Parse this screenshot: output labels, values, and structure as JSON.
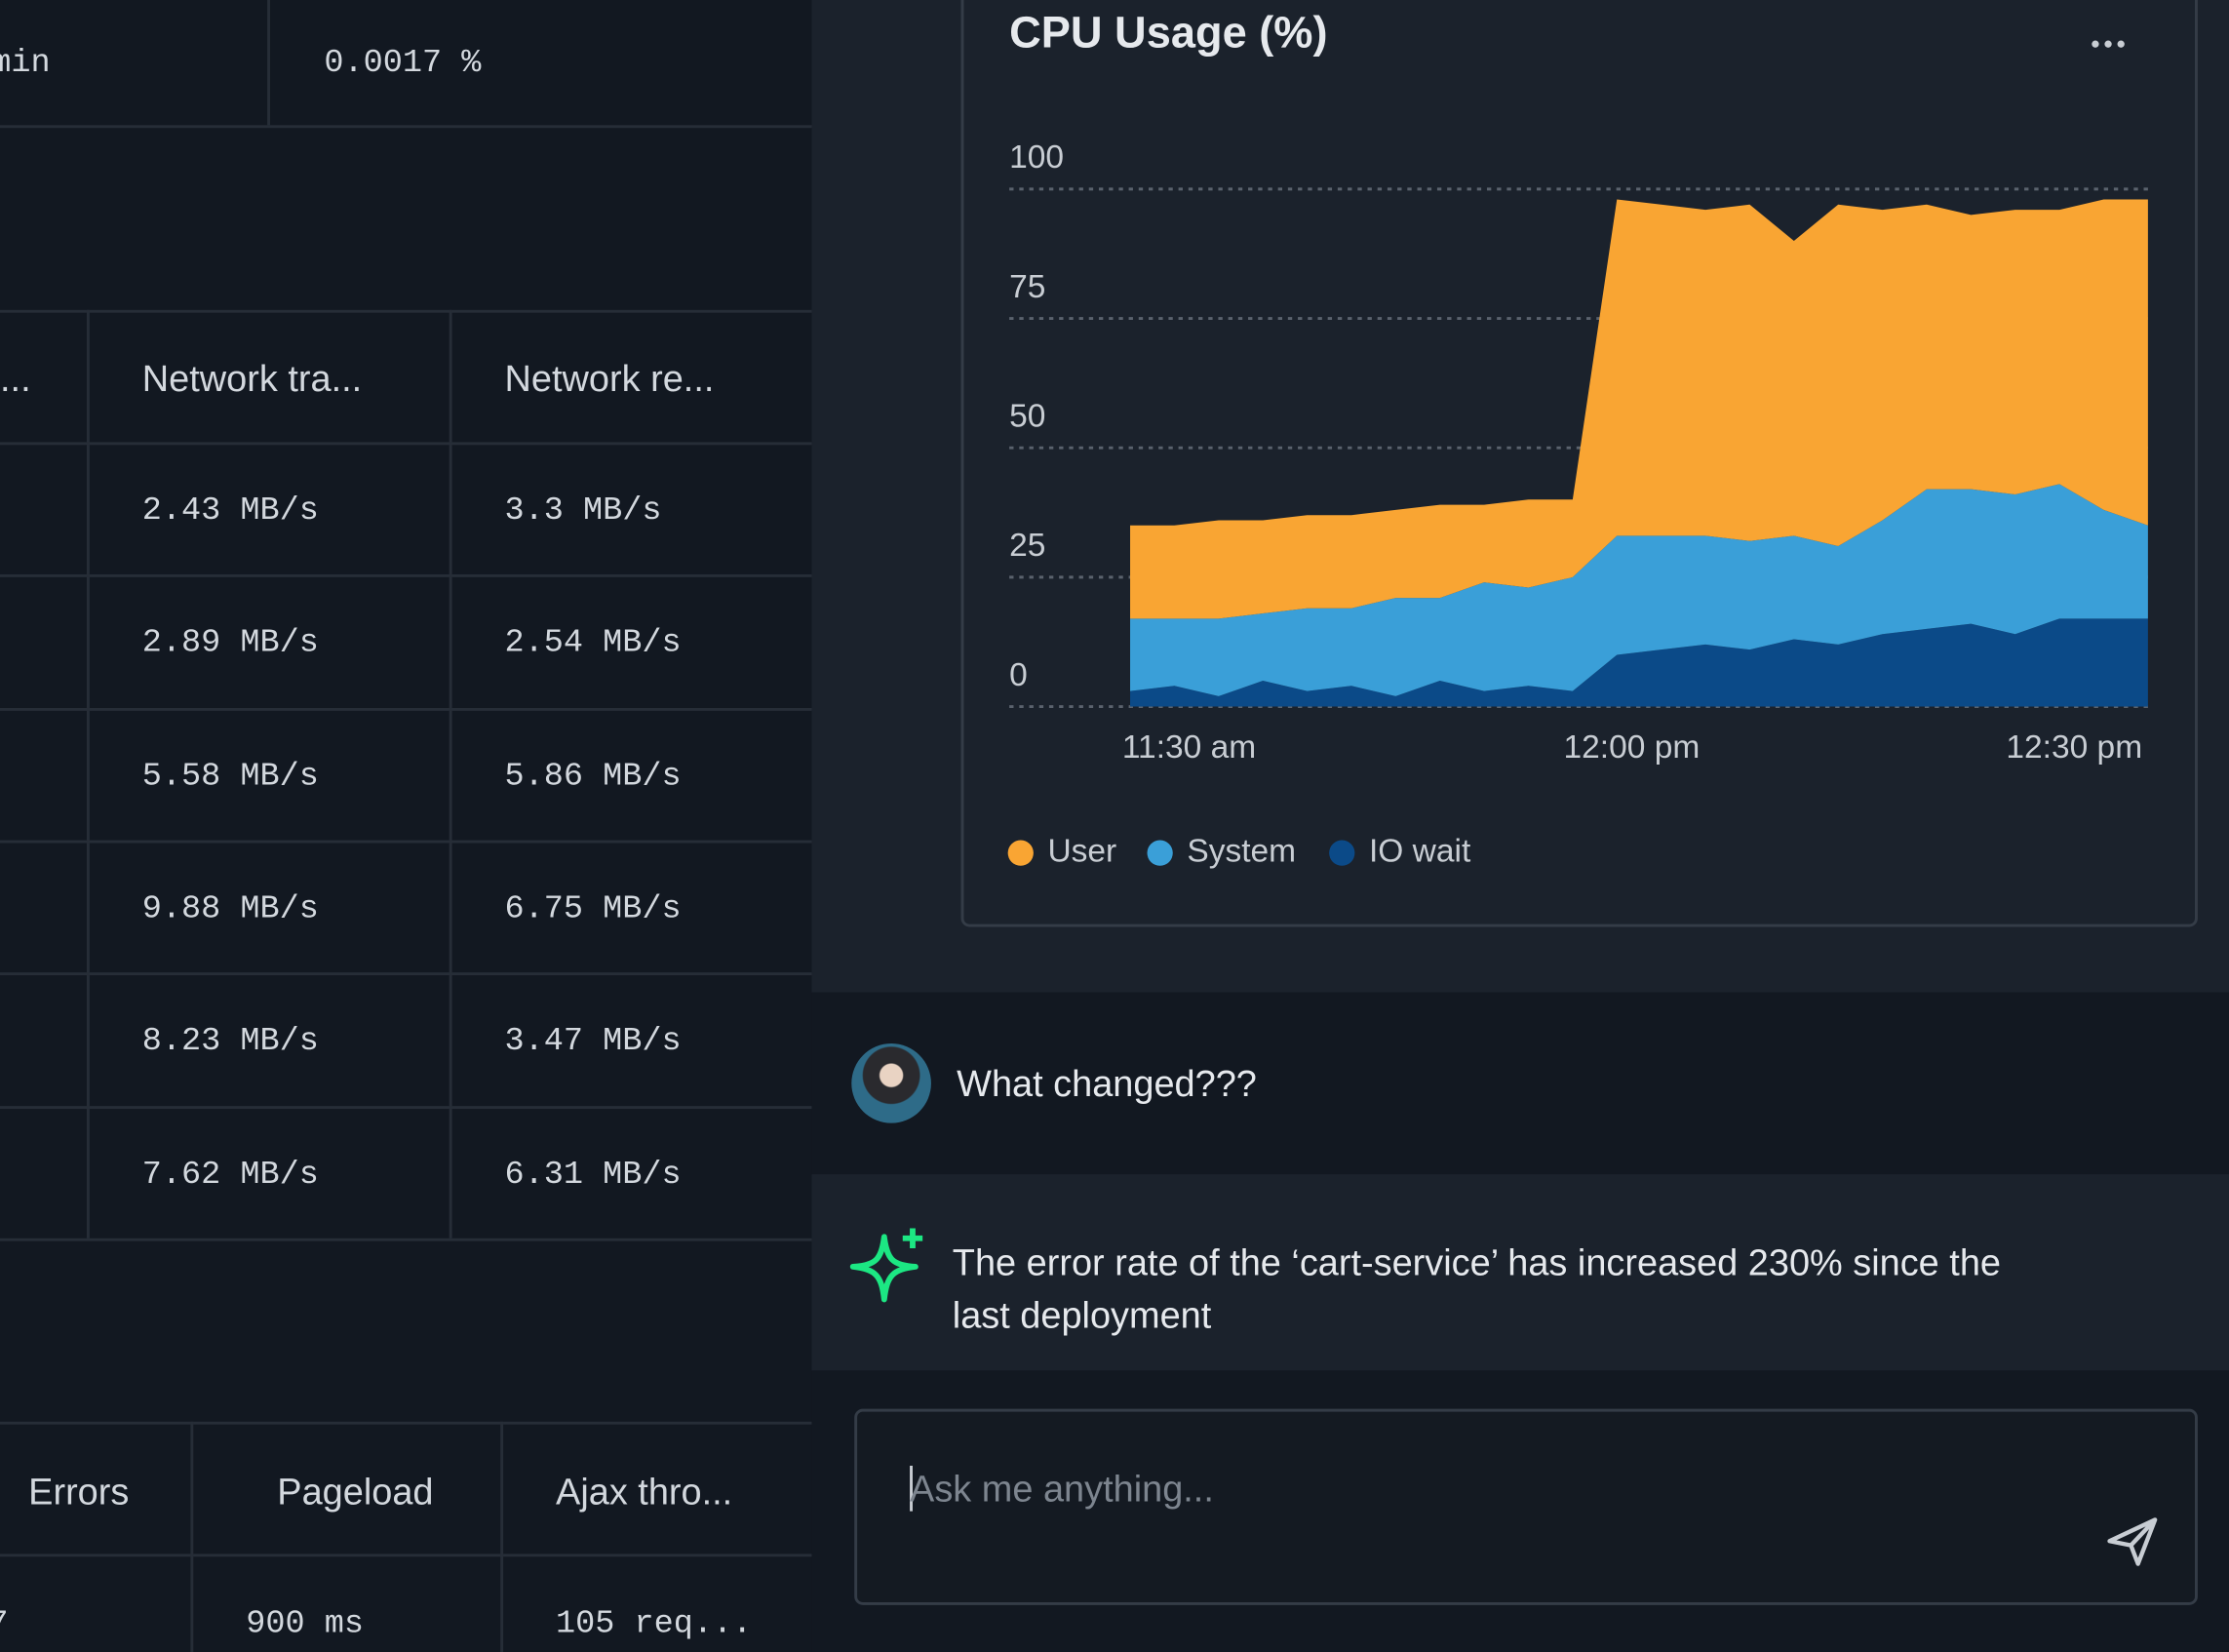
{
  "top_table": {
    "cells": [
      "min",
      "0.0017 %"
    ]
  },
  "network_table": {
    "headers": [
      "...",
      "Network tra...",
      "Network re..."
    ],
    "rows": [
      [
        "2.43 MB/s",
        "3.3 MB/s"
      ],
      [
        "2.89 MB/s",
        "2.54 MB/s"
      ],
      [
        "5.58 MB/s",
        "5.86 MB/s"
      ],
      [
        "9.88 MB/s",
        "6.75 MB/s"
      ],
      [
        "8.23 MB/s",
        "3.47 MB/s"
      ],
      [
        "7.62 MB/s",
        "6.31 MB/s"
      ]
    ]
  },
  "bottom_table": {
    "headers": [
      "Errors",
      "Pageload",
      "Ajax thro..."
    ],
    "rows": [
      [
        "7",
        "900 ms",
        "105 req..."
      ]
    ]
  },
  "chart_data": {
    "type": "stacked-area",
    "title": "CPU Usage (%)",
    "x": [
      686,
      689,
      692,
      695,
      698,
      701,
      704,
      707,
      710,
      713,
      716,
      719,
      722,
      725,
      728,
      731,
      734,
      737,
      740,
      743,
      746,
      749,
      752,
      755
    ],
    "xlim": [
      686,
      755
    ],
    "xticks": [
      {
        "value": 690,
        "label": "11:30 am"
      },
      {
        "value": 720,
        "label": "12:00 pm"
      },
      {
        "value": 750,
        "label": "12:30 pm"
      }
    ],
    "ylim": [
      0,
      100
    ],
    "yticks": [
      0,
      25,
      50,
      75,
      100
    ],
    "grid": true,
    "series": [
      {
        "name": "User",
        "color": "#f9a533",
        "values": [
          18,
          18,
          19,
          18,
          18,
          18,
          17,
          18,
          15,
          17,
          15,
          65,
          64,
          63,
          65,
          57,
          66,
          60,
          55,
          53,
          55,
          53,
          60,
          63
        ]
      },
      {
        "name": "System",
        "color": "#3a9fd8",
        "values": [
          14,
          13,
          15,
          13,
          16,
          15,
          19,
          16,
          21,
          19,
          22,
          23,
          22,
          21,
          21,
          20,
          19,
          22,
          27,
          26,
          27,
          26,
          21,
          18
        ]
      },
      {
        "name": "IO wait",
        "color": "#0b4a88",
        "values": [
          3,
          4,
          2,
          5,
          3,
          4,
          2,
          5,
          3,
          4,
          3,
          10,
          11,
          12,
          11,
          13,
          12,
          14,
          15,
          16,
          14,
          17,
          17,
          17
        ]
      }
    ]
  },
  "chat": {
    "question": "What changed???",
    "answer": "The error rate of the ‘cart-service’ has increased 230% since the last deployment",
    "placeholder": "Ask me anything..."
  }
}
